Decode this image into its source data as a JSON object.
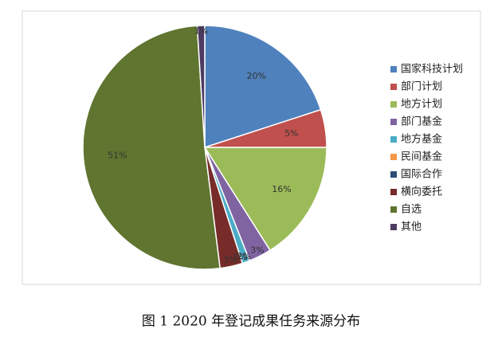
{
  "chart_data": {
    "type": "pie",
    "caption": "图 1 2020 年登记成果任务来源分布",
    "categories": [
      "国家科技计划",
      "部门计划",
      "地方计划",
      "部门基金",
      "地方基金",
      "民间基金",
      "国际合作",
      "横向委托",
      "自选",
      "其他"
    ],
    "values": [
      20,
      5,
      16,
      3,
      1,
      0,
      0,
      3,
      51,
      1
    ],
    "value_labels": [
      "20%",
      "5%",
      "16%",
      "3%",
      "1%",
      "0%",
      "0%",
      "3%",
      "51%",
      "1%"
    ],
    "colors": [
      "#4f81bd",
      "#c0504d",
      "#9bbb59",
      "#8064a2",
      "#4bacc6",
      "#f79646",
      "#2c4d75",
      "#772c2a",
      "#5f7530",
      "#4d3b62"
    ],
    "legend": "right"
  }
}
